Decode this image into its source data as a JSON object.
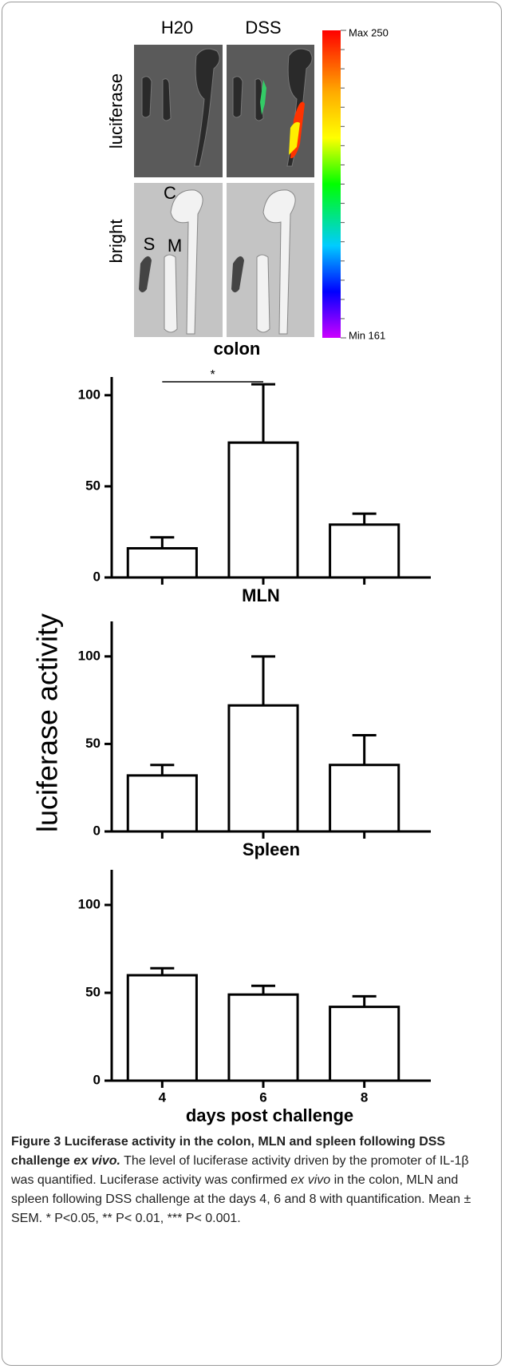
{
  "figure": {
    "col_h20": "H20",
    "col_dss": "DSS",
    "row_luciferase": "luciferase",
    "row_bright": "bright",
    "organ_c": "C",
    "organ_s": "S",
    "organ_m": "M",
    "scale_max": "Max 250",
    "scale_min": "Min 161",
    "y_label": "luciferase activity"
  },
  "chart_data": [
    {
      "type": "bar",
      "title": "colon",
      "categories": [
        null,
        null,
        null
      ],
      "values": [
        16,
        74,
        29
      ],
      "errors": [
        6,
        32,
        6
      ],
      "ylim": [
        0,
        110
      ],
      "yticks": [
        0,
        50,
        100
      ],
      "annotation": "*",
      "color": "#ffffff",
      "edge_color": "#000000"
    },
    {
      "type": "bar",
      "title": "MLN",
      "categories": [
        null,
        null,
        null
      ],
      "values": [
        32,
        72,
        38
      ],
      "errors": [
        6,
        28,
        17
      ],
      "ylim": [
        0,
        120
      ],
      "yticks": [
        0,
        50,
        100
      ],
      "color": "#ffffff",
      "edge_color": "#000000"
    },
    {
      "type": "bar",
      "title": "Spleen",
      "categories": [
        "4",
        "6",
        "8"
      ],
      "values": [
        60,
        49,
        42
      ],
      "errors": [
        4,
        5,
        6
      ],
      "ylim": [
        0,
        120
      ],
      "yticks": [
        0,
        50,
        100
      ],
      "x_label": "days post challenge",
      "color": "#ffffff",
      "edge_color": "#000000"
    }
  ],
  "caption": {
    "label": "Figure 3",
    "title": "Luciferase activity in the colon, MLN and spleen following DSS challenge",
    "title_em": "ex vivo.",
    "body_1": "The level of luciferase activity driven by the promoter of IL-1β was quantified. Luciferase activity was confirmed",
    "body_em": "ex vivo",
    "body_2": "in the colon, MLN and spleen following DSS challenge at the days 4, 6 and 8 with quantification. Mean ± SEM. * P<0.05, ** P< 0.01, *** P< 0.001."
  }
}
